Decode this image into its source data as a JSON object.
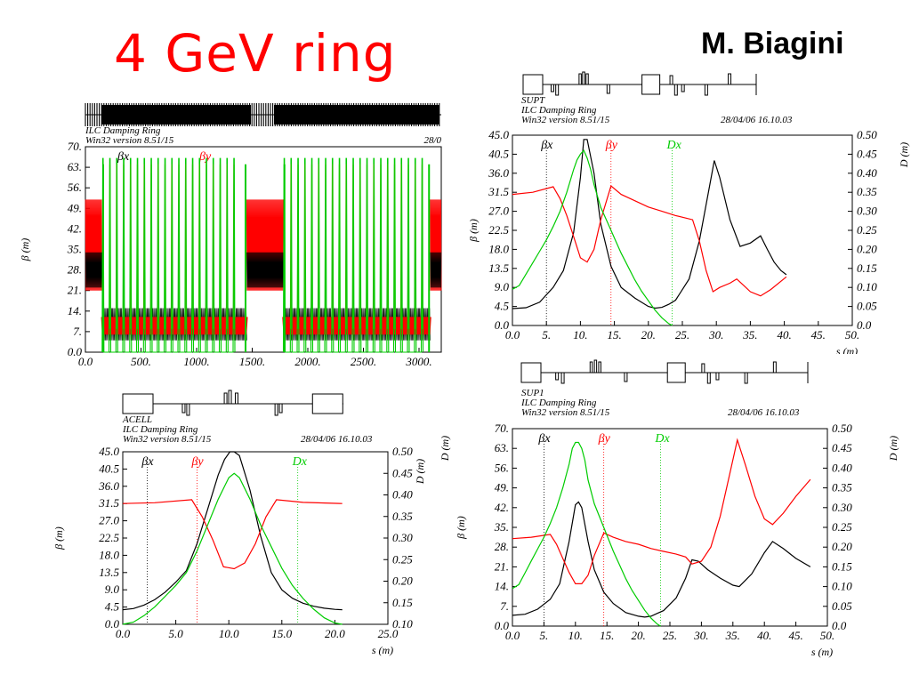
{
  "slide": {
    "title": "4 GeV ring",
    "author": "M. Biagini"
  },
  "colors": {
    "title": "#ff0000",
    "beta_x": "#000000",
    "beta_y": "#ff0000",
    "dispersion": "#00cc00"
  },
  "chart_data": [
    {
      "id": "ring",
      "type": "line",
      "header": [
        "ILC Damping Ring",
        "Win32 version 8.51/15"
      ],
      "date": "28/0",
      "ylabel": "β (m)",
      "xlabel": "",
      "xlim": [
        0,
        3200
      ],
      "ylim": [
        0,
        70
      ],
      "xticks": [
        "0.0",
        "500.",
        "1000.",
        "1500.",
        "2000.",
        "2500.",
        "3000."
      ],
      "xtick_values": [
        0,
        500,
        1000,
        1500,
        2000,
        2500,
        3000
      ],
      "yticks": [
        "0.0",
        "7.",
        "14.",
        "21.",
        "28.",
        "35.",
        "42.",
        "49.",
        "56.",
        "63.",
        "70."
      ],
      "ytick_values": [
        0,
        7,
        14,
        21,
        28,
        35,
        42,
        49,
        56,
        63,
        70
      ],
      "legend": [
        "βx",
        "βy"
      ],
      "arcs": [
        [
          150,
          1450
        ],
        [
          1780,
          3100
        ]
      ],
      "straights": [
        [
          0,
          150
        ],
        [
          1450,
          1780
        ],
        [
          3100,
          3200
        ]
      ],
      "straight_by_range": [
        21,
        52
      ],
      "arc_bx_range": [
        4,
        15
      ],
      "arc_by_range": [
        6,
        12
      ],
      "arc_dx_peak": 66,
      "series": [
        {
          "name": "βx",
          "color": "#000000"
        },
        {
          "name": "βy",
          "color": "#ff0000"
        },
        {
          "name": "",
          "color": "#00cc00"
        }
      ]
    },
    {
      "id": "supt",
      "type": "line",
      "header": [
        "SUPT",
        "ILC Damping Ring",
        "Win32 version 8.51/15"
      ],
      "date": "28/04/06  16.10.03",
      "ylabel": "β (m)",
      "y2label": "D (m)",
      "xlabel": "s (m)",
      "xlim": [
        0,
        50
      ],
      "ylim": [
        0,
        45
      ],
      "y2lim": [
        0,
        0.5
      ],
      "xticks": [
        "0.0",
        "5.",
        "10.",
        "15.",
        "20.",
        "25.",
        "30.",
        "35.",
        "40.",
        "45.",
        "50."
      ],
      "xtick_values": [
        0,
        5,
        10,
        15,
        20,
        25,
        30,
        35,
        40,
        45,
        50
      ],
      "yticks": [
        "0.0",
        "4.5",
        "9.0",
        "13.5",
        "18.0",
        "22.5",
        "27.0",
        "31.5",
        "36.0",
        "40.5",
        "45.0"
      ],
      "ytick_values": [
        0,
        4.5,
        9,
        13.5,
        18,
        22.5,
        27,
        31.5,
        36,
        40.5,
        45
      ],
      "y2ticks": [
        "0.0",
        "0.05",
        "0.10",
        "0.15",
        "0.20",
        "0.25",
        "0.30",
        "0.35",
        "0.40",
        "0.45",
        "0.50"
      ],
      "y2tick_values": [
        0,
        0.05,
        0.1,
        0.15,
        0.2,
        0.25,
        0.3,
        0.35,
        0.4,
        0.45,
        0.5
      ],
      "legend": [
        "βx",
        "βy",
        "Dx"
      ],
      "legend_marker_s": [
        5,
        14.5,
        23.5
      ],
      "series": [
        {
          "name": "βx",
          "color": "#000000",
          "axis": "left",
          "x": [
            0,
            2,
            4,
            6,
            7.5,
            9,
            10,
            10.5,
            11,
            12,
            13,
            14.5,
            16,
            18,
            20,
            21,
            22,
            23,
            24,
            26,
            27.5,
            29,
            29.7,
            30.5,
            32,
            33.5,
            35,
            36.5,
            37.5,
            38.5,
            39.5,
            40.3
          ],
          "y": [
            4,
            4.2,
            5.5,
            9,
            13,
            22,
            35,
            44,
            44,
            36,
            24,
            14,
            9,
            6.5,
            4.5,
            4.1,
            4.3,
            5,
            6,
            11,
            20,
            33,
            39,
            35,
            25,
            18.7,
            19.5,
            21.2,
            18,
            15,
            13,
            12
          ]
        },
        {
          "name": "βy",
          "color": "#ff0000",
          "axis": "left",
          "x": [
            0,
            3,
            6,
            7,
            8,
            9,
            10,
            11,
            12,
            13,
            14.5,
            16,
            18,
            20,
            22,
            24,
            26.5,
            27.5,
            28.5,
            29.5,
            30.5,
            32,
            33,
            34,
            35,
            36.5,
            38,
            40.3
          ],
          "y": [
            31,
            31.5,
            32.8,
            30,
            26,
            21,
            16,
            15,
            18,
            25,
            33,
            31,
            29.5,
            28,
            27,
            26,
            25,
            20,
            13,
            8,
            9,
            10,
            11,
            9.5,
            8,
            7,
            8.5,
            11.5
          ]
        },
        {
          "name": "Dx",
          "color": "#00cc00",
          "axis": "right",
          "x": [
            0,
            1,
            2,
            3,
            4,
            5,
            6,
            7,
            8,
            9,
            9.5,
            10,
            10.5,
            11,
            11.5,
            12,
            13,
            14,
            15,
            16,
            17,
            18,
            19,
            20,
            21,
            22,
            23,
            23.5
          ],
          "y": [
            0.095,
            0.105,
            0.135,
            0.165,
            0.195,
            0.225,
            0.26,
            0.3,
            0.35,
            0.41,
            0.435,
            0.45,
            0.46,
            0.44,
            0.41,
            0.37,
            0.31,
            0.27,
            0.23,
            0.19,
            0.155,
            0.12,
            0.09,
            0.065,
            0.04,
            0.02,
            0.005,
            0
          ]
        }
      ]
    },
    {
      "id": "acell",
      "type": "line",
      "header": [
        "ACELL",
        "ILC Damping Ring",
        "Win32 version 8.51/15"
      ],
      "date": "28/04/06  16.10.03",
      "ylabel": "β (m)",
      "y2label": "D (m)",
      "xlabel": "s (m)",
      "xlim": [
        0,
        25
      ],
      "ylim": [
        0,
        45
      ],
      "y2lim": [
        0.1,
        0.5
      ],
      "xticks": [
        "0.0",
        "5.0",
        "10.0",
        "15.0",
        "20.0",
        "25.0"
      ],
      "xtick_values": [
        0,
        5,
        10,
        15,
        20,
        25
      ],
      "yticks": [
        "0.0",
        "4.5",
        "9.0",
        "13.5",
        "18.0",
        "22.5",
        "27.0",
        "31.5",
        "36.0",
        "40.5",
        "45.0"
      ],
      "ytick_values": [
        0,
        4.5,
        9,
        13.5,
        18,
        22.5,
        27,
        31.5,
        36,
        40.5,
        45
      ],
      "y2ticks": [
        "0.10",
        "0.15",
        "0.20",
        "0.25",
        "0.30",
        "0.35",
        "0.40",
        "0.45",
        "0.50"
      ],
      "y2tick_values": [
        0.1,
        0.15,
        0.2,
        0.25,
        0.3,
        0.35,
        0.4,
        0.45,
        0.5
      ],
      "legend": [
        "βx",
        "βy",
        "Dx"
      ],
      "legend_marker_s": [
        2.3,
        7,
        16.5
      ],
      "series": [
        {
          "name": "βx",
          "color": "#000000",
          "axis": "left",
          "x": [
            0,
            1,
            2,
            3,
            4,
            5,
            6,
            7,
            8,
            9,
            9.6,
            10.1,
            10.5,
            11,
            12,
            13,
            14,
            15,
            16,
            17,
            18,
            19,
            20,
            20.7
          ],
          "y": [
            3.8,
            4.1,
            5,
            6.4,
            8.4,
            11,
            14,
            21,
            30,
            39,
            43,
            45,
            45,
            44,
            35,
            23,
            13.5,
            9,
            6.8,
            5.5,
            4.7,
            4.2,
            3.9,
            3.8
          ]
        },
        {
          "name": "βy",
          "color": "#ff0000",
          "axis": "left",
          "x": [
            0,
            3,
            6.5,
            7.5,
            8.5,
            9.5,
            10.5,
            11.5,
            12.5,
            13.5,
            14.5,
            17,
            20.7
          ],
          "y": [
            31.5,
            31.7,
            32.5,
            28,
            22,
            15,
            14.5,
            16,
            21,
            28,
            32.5,
            31.8,
            31.5
          ]
        },
        {
          "name": "Dx",
          "color": "#00cc00",
          "axis": "right",
          "x": [
            0,
            1,
            2,
            3,
            4,
            5,
            6,
            7,
            8,
            9,
            10,
            10.5,
            11,
            12,
            13,
            14,
            15,
            16,
            17,
            18,
            19,
            20,
            20.7
          ],
          "y": [
            0.1,
            0.105,
            0.12,
            0.14,
            0.165,
            0.19,
            0.22,
            0.27,
            0.33,
            0.39,
            0.44,
            0.45,
            0.44,
            0.39,
            0.33,
            0.28,
            0.23,
            0.19,
            0.16,
            0.135,
            0.115,
            0.103,
            0.1
          ]
        }
      ]
    },
    {
      "id": "sup1",
      "type": "line",
      "header": [
        "SUP1",
        "ILC Damping Ring",
        "Win32 version 8.51/15"
      ],
      "date": "28/04/06  16.10.03",
      "ylabel": "β (m)",
      "y2label": "D (m)",
      "left_extra_label": "D (m)",
      "xlabel": "s (m)",
      "xlim": [
        0,
        50
      ],
      "ylim": [
        0,
        70
      ],
      "y2lim": [
        0,
        0.5
      ],
      "xticks": [
        "0.0",
        "5.",
        "10.",
        "15.",
        "20.",
        "25.",
        "30.",
        "35.",
        "40.",
        "45.",
        "50."
      ],
      "xtick_values": [
        0,
        5,
        10,
        15,
        20,
        25,
        30,
        35,
        40,
        45,
        50
      ],
      "yticks": [
        "0.0",
        "7.",
        "14.",
        "21.",
        "28.",
        "35.",
        "42.",
        "49.",
        "56.",
        "63.",
        "70."
      ],
      "ytick_values": [
        0,
        7,
        14,
        21,
        28,
        35,
        42,
        49,
        56,
        63,
        70
      ],
      "y2ticks": [
        "0.0",
        "0.05",
        "0.10",
        "0.15",
        "0.20",
        "0.25",
        "0.30",
        "0.35",
        "0.40",
        "0.45",
        "0.50"
      ],
      "y2tick_values": [
        0,
        0.05,
        0.1,
        0.15,
        0.2,
        0.25,
        0.3,
        0.35,
        0.4,
        0.45,
        0.5
      ],
      "legend": [
        "βx",
        "βy",
        "Dx"
      ],
      "legend_marker_s": [
        5,
        14.5,
        23.5
      ],
      "series": [
        {
          "name": "βx",
          "color": "#000000",
          "axis": "left",
          "x": [
            0,
            2,
            4,
            6,
            7.5,
            9,
            10,
            10.5,
            11,
            12,
            13,
            14.5,
            16,
            18,
            20,
            21,
            22,
            23,
            24,
            26,
            27.5,
            28.5,
            29.5,
            31,
            33,
            35,
            36,
            38,
            40,
            41.3,
            43,
            45,
            47.3
          ],
          "y": [
            3.8,
            4.2,
            6,
            9.5,
            15,
            30,
            43,
            44,
            42,
            30,
            20,
            12,
            8,
            4.8,
            3.5,
            3.2,
            3.5,
            4.5,
            5.5,
            10,
            17,
            23.5,
            23,
            20,
            17,
            14.5,
            14,
            18.5,
            26,
            30,
            27.5,
            24,
            21
          ]
        },
        {
          "name": "βy",
          "color": "#ff0000",
          "axis": "left",
          "x": [
            0,
            3,
            6,
            7,
            8,
            9,
            10,
            11,
            12,
            13,
            14.5,
            16,
            18,
            20,
            22,
            24,
            26,
            27.5,
            28.5,
            30,
            31.5,
            33,
            34.5,
            35.7,
            37,
            38.5,
            40,
            41.3,
            43,
            45,
            47.3
          ],
          "y": [
            31,
            31.5,
            32.5,
            29,
            24,
            19,
            15,
            15,
            18,
            25,
            33,
            31.5,
            30,
            29,
            27.5,
            26.5,
            25.5,
            24.5,
            22,
            23,
            28,
            39,
            54,
            66,
            57,
            46,
            38,
            36,
            40,
            46,
            52
          ]
        },
        {
          "name": "Dx",
          "color": "#00cc00",
          "axis": "right",
          "x": [
            0,
            1,
            2,
            3,
            4,
            5,
            6,
            7,
            8,
            9,
            9.5,
            10,
            10.5,
            11,
            11.5,
            12,
            13,
            14,
            15,
            16,
            17,
            18,
            19,
            20,
            21,
            22,
            23,
            23.5
          ],
          "y": [
            0.095,
            0.105,
            0.135,
            0.165,
            0.195,
            0.225,
            0.26,
            0.3,
            0.35,
            0.41,
            0.45,
            0.465,
            0.465,
            0.45,
            0.42,
            0.37,
            0.31,
            0.27,
            0.23,
            0.19,
            0.155,
            0.12,
            0.09,
            0.065,
            0.04,
            0.02,
            0.005,
            0
          ]
        }
      ]
    }
  ]
}
